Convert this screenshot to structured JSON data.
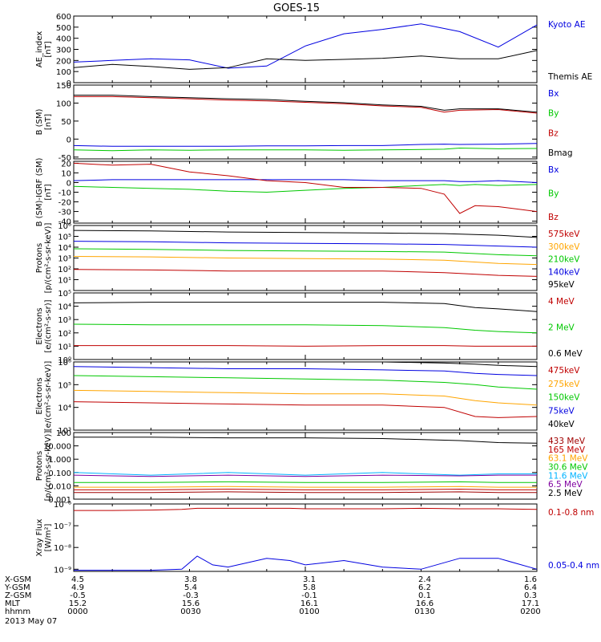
{
  "title": "GOES-15",
  "colors": {
    "black": "#000000",
    "blue": "#0000e0",
    "red": "#c00000",
    "green": "#00c800",
    "orange": "#ffa500",
    "cyan": "#00b4ff",
    "purple": "#8000a0",
    "crimson": "#a00000"
  },
  "chart_data": [
    {
      "type": "line",
      "ylabel": "AE_index\n[nT]",
      "scale": "linear",
      "ylim": [
        0,
        600
      ],
      "yticks": [
        "0",
        "100",
        "200",
        "300",
        "400",
        "500",
        "600"
      ],
      "x": [
        0,
        5,
        10,
        15,
        20,
        25,
        30,
        35,
        40,
        45,
        50,
        55,
        60
      ],
      "series": [
        {
          "name": "Kyoto AE",
          "color": "blue",
          "values": [
            185,
            200,
            215,
            205,
            130,
            150,
            330,
            440,
            480,
            530,
            460,
            320,
            520
          ]
        },
        {
          "name": "Themis AE",
          "color": "black",
          "values": [
            135,
            165,
            145,
            120,
            135,
            215,
            200,
            210,
            220,
            240,
            215,
            215,
            290
          ]
        }
      ]
    },
    {
      "type": "line",
      "ylabel": "B (SM)\n[nT]",
      "scale": "linear",
      "ylim": [
        -55,
        150
      ],
      "yticks": [
        "-50",
        "0",
        "50",
        "100",
        "150"
      ],
      "x": [
        0,
        5,
        10,
        15,
        20,
        25,
        30,
        35,
        40,
        45,
        48,
        50,
        55,
        60
      ],
      "series": [
        {
          "name": "Bx",
          "color": "blue",
          "values": [
            -18,
            -20,
            -20,
            -20,
            -20,
            -19,
            -19,
            -18,
            -18,
            -15,
            -14,
            -15,
            -14,
            -12
          ]
        },
        {
          "name": "By",
          "color": "green",
          "values": [
            -30,
            -32,
            -30,
            -31,
            -30,
            -30,
            -30,
            -31,
            -30,
            -29,
            -28,
            -25,
            -27,
            -26
          ]
        },
        {
          "name": "Bz",
          "color": "red",
          "values": [
            118,
            118,
            115,
            112,
            108,
            106,
            102,
            98,
            92,
            88,
            75,
            80,
            82,
            72
          ]
        },
        {
          "name": "Bmag",
          "color": "black",
          "values": [
            122,
            122,
            118,
            115,
            112,
            110,
            105,
            101,
            95,
            91,
            80,
            84,
            84,
            75
          ]
        }
      ]
    },
    {
      "type": "line",
      "ylabel": "B (SM)-IGRF (SM)\n[nT]",
      "scale": "linear",
      "ylim": [
        -42,
        22
      ],
      "yticks": [
        "-40",
        "-30",
        "-20",
        "-10",
        "0",
        "10",
        "20"
      ],
      "x": [
        0,
        5,
        10,
        15,
        20,
        25,
        30,
        35,
        40,
        45,
        48,
        50,
        52,
        55,
        60
      ],
      "series": [
        {
          "name": "Bx",
          "color": "blue",
          "values": [
            2,
            3,
            3,
            3,
            3,
            3,
            3,
            3,
            2,
            2,
            2,
            1,
            1,
            2,
            0
          ]
        },
        {
          "name": "By",
          "color": "green",
          "values": [
            -4,
            -5,
            -6,
            -7,
            -9,
            -10,
            -8,
            -6,
            -5,
            -3,
            -2,
            -3,
            -2,
            -3,
            -2
          ]
        },
        {
          "name": "Bz",
          "color": "red",
          "values": [
            20,
            18,
            19,
            11,
            7,
            2,
            0,
            -5,
            -5,
            -6,
            -12,
            -32,
            -24,
            -25,
            -30
          ]
        }
      ]
    },
    {
      "type": "line",
      "ylabel": "Protons\n[p/(cm²-s-sr-keV)]",
      "scale": "log",
      "ylim": [
        0,
        6
      ],
      "yticks": [
        "10¹",
        "10²",
        "10³",
        "10⁴",
        "10⁵",
        "10⁶"
      ],
      "x": [
        0,
        10,
        20,
        30,
        40,
        48,
        55,
        60
      ],
      "series": [
        {
          "name": "575keV",
          "color": "red",
          "values": [
            1.95,
            1.9,
            1.8,
            1.8,
            1.8,
            1.65,
            1.4,
            1.3
          ]
        },
        {
          "name": "300keV",
          "color": "orange",
          "values": [
            3.15,
            3.1,
            3.0,
            2.95,
            2.9,
            2.8,
            2.5,
            2.4
          ]
        },
        {
          "name": "210keV",
          "color": "green",
          "values": [
            3.85,
            3.8,
            3.7,
            3.65,
            3.6,
            3.55,
            3.3,
            3.2
          ]
        },
        {
          "name": "140keV",
          "color": "blue",
          "values": [
            4.55,
            4.5,
            4.4,
            4.35,
            4.3,
            4.25,
            4.1,
            4.0
          ]
        },
        {
          "name": "95keV",
          "color": "black",
          "values": [
            5.55,
            5.5,
            5.4,
            5.35,
            5.3,
            5.25,
            5.1,
            4.9
          ]
        }
      ]
    },
    {
      "type": "line",
      "ylabel": "Electrons\n[e/(cm²-s-sr)]",
      "scale": "log",
      "ylim": [
        0,
        5
      ],
      "yticks": [
        "10⁰",
        "10¹",
        "10²",
        "10³",
        "10⁴",
        "10⁵"
      ],
      "x": [
        0,
        10,
        20,
        30,
        40,
        48,
        52,
        55,
        60
      ],
      "series": [
        {
          "name": "4 MeV",
          "color": "red",
          "values": [
            1.05,
            1.05,
            1.05,
            1.0,
            1.05,
            1.05,
            1.0,
            1.0,
            1.0
          ]
        },
        {
          "name": "2 MeV",
          "color": "green",
          "values": [
            2.65,
            2.6,
            2.6,
            2.6,
            2.55,
            2.4,
            2.2,
            2.1,
            2.0
          ]
        },
        {
          "name": "0.6 MeV",
          "color": "black",
          "values": [
            4.25,
            4.3,
            4.3,
            4.3,
            4.3,
            4.2,
            3.9,
            3.8,
            3.6
          ]
        }
      ]
    },
    {
      "type": "line",
      "ylabel": "Electrons\n[e/(cm²-s-sr-keV)]",
      "scale": "log",
      "ylim": [
        3,
        6
      ],
      "yticks": [
        "10³",
        "10⁴",
        "10⁵",
        "10⁶"
      ],
      "x": [
        0,
        10,
        20,
        30,
        40,
        48,
        52,
        55,
        60
      ],
      "series": [
        {
          "name": "475keV",
          "color": "red",
          "values": [
            4.25,
            4.2,
            4.15,
            4.1,
            4.1,
            4.0,
            3.6,
            3.55,
            3.6
          ]
        },
        {
          "name": "275keV",
          "color": "orange",
          "values": [
            4.75,
            4.7,
            4.65,
            4.6,
            4.6,
            4.5,
            4.3,
            4.2,
            4.1
          ]
        },
        {
          "name": "150keV",
          "color": "green",
          "values": [
            5.4,
            5.35,
            5.3,
            5.25,
            5.2,
            5.1,
            5.0,
            4.9,
            4.8
          ]
        },
        {
          "name": "75keV",
          "color": "blue",
          "values": [
            5.8,
            5.75,
            5.7,
            5.7,
            5.65,
            5.6,
            5.5,
            5.45,
            5.4
          ]
        },
        {
          "name": "40keV",
          "color": "black",
          "values": [
            6.05,
            6.0,
            6.0,
            6.0,
            6.0,
            5.95,
            5.9,
            5.85,
            5.8
          ]
        }
      ]
    },
    {
      "type": "line",
      "ylabel": "Protons\n[p/(cm²-s-sr-keV)]",
      "scale": "log",
      "ylim": [
        -3,
        2
      ],
      "yticks": [
        "0.001",
        "0.010",
        "0.100",
        "1.000",
        "10.000",
        "100"
      ],
      "x": [
        0,
        10,
        20,
        30,
        40,
        50,
        55,
        60
      ],
      "series": [
        {
          "name": "433 MeV",
          "color": "crimson",
          "values": [
            -2.5,
            -2.5,
            -2.45,
            -2.5,
            -2.5,
            -2.45,
            -2.5,
            -2.5
          ]
        },
        {
          "name": "165 MeV",
          "color": "red",
          "values": [
            -2.3,
            -2.3,
            -2.25,
            -2.3,
            -2.3,
            -2.25,
            -2.3,
            -2.3
          ]
        },
        {
          "name": "63.1 MeV",
          "color": "orange",
          "values": [
            -2.1,
            -2.1,
            -2.05,
            -2.1,
            -2.1,
            -2.05,
            -2.1,
            -2.1
          ]
        },
        {
          "name": "30.6 MeV",
          "color": "green",
          "values": [
            -1.75,
            -1.75,
            -1.7,
            -1.75,
            -1.75,
            -1.7,
            -1.75,
            -1.75
          ]
        },
        {
          "name": "11.6 MeV",
          "color": "cyan",
          "values": [
            -1.0,
            -1.2,
            -1.0,
            -1.2,
            -1.0,
            -1.2,
            -1.1,
            -1.1
          ]
        },
        {
          "name": "6.5 MeV",
          "color": "purple",
          "values": [
            -1.2,
            -1.3,
            -1.2,
            -1.3,
            -1.2,
            -1.25,
            -1.2,
            -1.2
          ]
        },
        {
          "name": "2.5 MeV",
          "color": "black",
          "values": [
            1.65,
            1.65,
            1.6,
            1.6,
            1.55,
            1.4,
            1.25,
            1.2
          ]
        }
      ]
    },
    {
      "type": "line",
      "ylabel": "Xray Flux\n[W/m²]",
      "scale": "log",
      "ylim": [
        -9.1,
        -6.0
      ],
      "yticks": [
        "10⁻⁹",
        "10⁻⁸",
        "10⁻⁷",
        "10⁻⁶"
      ],
      "x": [
        0,
        5,
        10,
        14,
        16,
        18,
        20,
        25,
        28,
        30,
        35,
        40,
        45,
        50,
        55,
        60
      ],
      "series": [
        {
          "name": "0.1-0.8 nm",
          "color": "red",
          "values": [
            -6.3,
            -6.3,
            -6.28,
            -6.25,
            -6.2,
            -6.2,
            -6.2,
            -6.2,
            -6.2,
            -6.22,
            -6.22,
            -6.22,
            -6.2,
            -6.22,
            -6.22,
            -6.25
          ]
        },
        {
          "name": "0.05-0.4 nm",
          "color": "blue",
          "values": [
            -9.05,
            -9.05,
            -9.05,
            -9.0,
            -8.4,
            -8.8,
            -8.9,
            -8.5,
            -8.6,
            -8.8,
            -8.6,
            -8.9,
            -9.0,
            -8.5,
            -8.5,
            -9.0
          ]
        }
      ]
    }
  ],
  "orbit": {
    "labels": [
      "X-GSM",
      "Y-GSM",
      "Z-GSM",
      "MLT",
      "hhmm"
    ],
    "columns": [
      {
        "values": [
          "4.5",
          "4.9",
          "-0.5",
          "15.2",
          "0000"
        ]
      },
      {
        "values": [
          "3.8",
          "5.4",
          "-0.3",
          "15.6",
          "0030"
        ]
      },
      {
        "values": [
          "3.1",
          "5.8",
          "-0.1",
          "16.1",
          "0100"
        ]
      },
      {
        "values": [
          "2.4",
          "6.2",
          "0.1",
          "16.6",
          "0130"
        ]
      },
      {
        "values": [
          "1.6",
          "6.4",
          "0.3",
          "17.1",
          "0200"
        ]
      }
    ],
    "date": "2013 May 07"
  }
}
